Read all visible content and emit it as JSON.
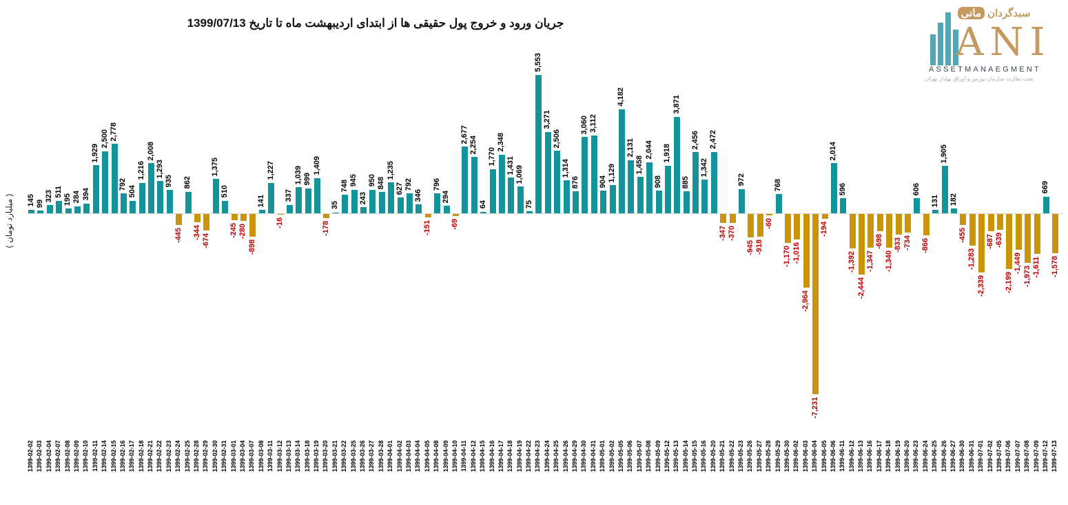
{
  "title": "جریان ورود و خروج پول حقیقی ها از ابتدای اردیبهشت ماه تا تاریخ 1399/07/13",
  "y_axis_label": "( میلیارد تومان )",
  "logo": {
    "brand_fa_word1": "سبدگردان",
    "brand_fa_word2": "مانی",
    "brand_en": "ANI",
    "subtitle_en": "ASSETMANAEGMENT",
    "tagline_fa": "تحت نظارت سازمان بورس و اوراق بهادار تهران"
  },
  "colors": {
    "positive_bar": "#15939B",
    "negative_bar": "#C9940A",
    "positive_label": "#000000",
    "negative_label": "#C00000",
    "axis_line": "#D9D9D9",
    "logo_teal": "#4FA8B4",
    "logo_gold": "#C49A5E"
  },
  "chart_data": {
    "type": "bar",
    "title": "جریان ورود و خروج پول حقیقی ها از ابتدای اردیبهشت ماه تا تاریخ 1399/07/13",
    "xlabel": "",
    "ylabel": "( میلیارد تومان )",
    "unit": "میلیارد تومان",
    "ylim": [
      -7500,
      5800
    ],
    "grid": false,
    "legend": false,
    "bar_label_rotation_deg": 90,
    "x_tick_rotation_deg": 90,
    "categories": [
      "1399-02-02",
      "1399-02-03",
      "1399-02-04",
      "1399-02-07",
      "1399-02-08",
      "1399-02-09",
      "1399-02-10",
      "1399-02-11",
      "1399-02-14",
      "1399-02-15",
      "1399-02-16",
      "1399-02-17",
      "1399-02-18",
      "1399-02-21",
      "1399-02-22",
      "1399-02-23",
      "1399-02-24",
      "1399-02-25",
      "1399-02-28",
      "1399-02-29",
      "1399-02-30",
      "1399-02-31",
      "1399-03-01",
      "1399-03-04",
      "1399-03-07",
      "1399-03-08",
      "1399-03-11",
      "1399-03-12",
      "1399-03-13",
      "1399-03-14",
      "1399-03-18",
      "1399-03-19",
      "1399-03-20",
      "1399-03-21",
      "1399-03-22",
      "1399-03-25",
      "1399-03-26",
      "1399-03-27",
      "1399-03-28",
      "1399-04-01",
      "1399-04-02",
      "1399-04-03",
      "1399-04-04",
      "1399-04-05",
      "1399-04-08",
      "1399-04-09",
      "1399-04-10",
      "1399-04-11",
      "1399-04-12",
      "1399-04-15",
      "1399-04-16",
      "1399-04-17",
      "1399-04-18",
      "1399-04-19",
      "1399-04-22",
      "1399-04-23",
      "1399-04-24",
      "1399-04-25",
      "1399-04-26",
      "1399-04-29",
      "1399-04-30",
      "1399-04-31",
      "1399-05-01",
      "1399-05-02",
      "1399-05-05",
      "1399-05-06",
      "1399-05-07",
      "1399-05-08",
      "1399-05-09",
      "1399-05-12",
      "1399-05-13",
      "1399-05-14",
      "1399-05-15",
      "1399-05-16",
      "1399-05-20",
      "1399-05-21",
      "1399-05-22",
      "1399-05-23",
      "1399-05-26",
      "1399-05-27",
      "1399-05-28",
      "1399-05-29",
      "1399-05-30",
      "1399-06-02",
      "1399-06-03",
      "1399-06-04",
      "1399-06-05",
      "1399-06-06",
      "1399-06-11",
      "1399-06-12",
      "1399-06-13",
      "1399-06-16",
      "1399-06-17",
      "1399-06-18",
      "1399-06-19",
      "1399-06-20",
      "1399-06-23",
      "1399-06-24",
      "1399-06-25",
      "1399-06-26",
      "1399-06-27",
      "1399-06-30",
      "1399-06-31",
      "1399-07-01",
      "1399-07-02",
      "1399-07-05",
      "1399-07-06",
      "1399-07-07",
      "1399-07-08",
      "1399-07-09",
      "1399-07-12",
      "1399-07-13"
    ],
    "values": [
      145,
      99,
      323,
      511,
      195,
      284,
      394,
      1929,
      2500,
      2778,
      792,
      504,
      1216,
      2008,
      1293,
      935,
      -445,
      862,
      -344,
      -674,
      1375,
      510,
      -245,
      -280,
      -898,
      141,
      1227,
      -16,
      337,
      1039,
      999,
      1409,
      -178,
      35,
      748,
      945,
      243,
      950,
      848,
      1235,
      627,
      792,
      346,
      -151,
      796,
      294,
      -69,
      2677,
      2254,
      64,
      1770,
      2348,
      1431,
      1069,
      75,
      5553,
      3271,
      2506,
      1314,
      876,
      3060,
      3112,
      904,
      1129,
      4182,
      2131,
      1458,
      2044,
      908,
      1918,
      3871,
      885,
      2456,
      1342,
      2472,
      -347,
      -370,
      972,
      -945,
      -918,
      -60,
      768,
      -1170,
      -1016,
      -2964,
      -7231,
      -194,
      2014,
      596,
      -1392,
      -2444,
      -1347,
      -698,
      -1340,
      -833,
      -734,
      606,
      -866,
      131,
      1905,
      182,
      -455,
      -1283,
      -2339,
      -687,
      -639,
      -2199,
      -1449,
      -1973,
      -1611,
      669,
      -1578
    ]
  }
}
